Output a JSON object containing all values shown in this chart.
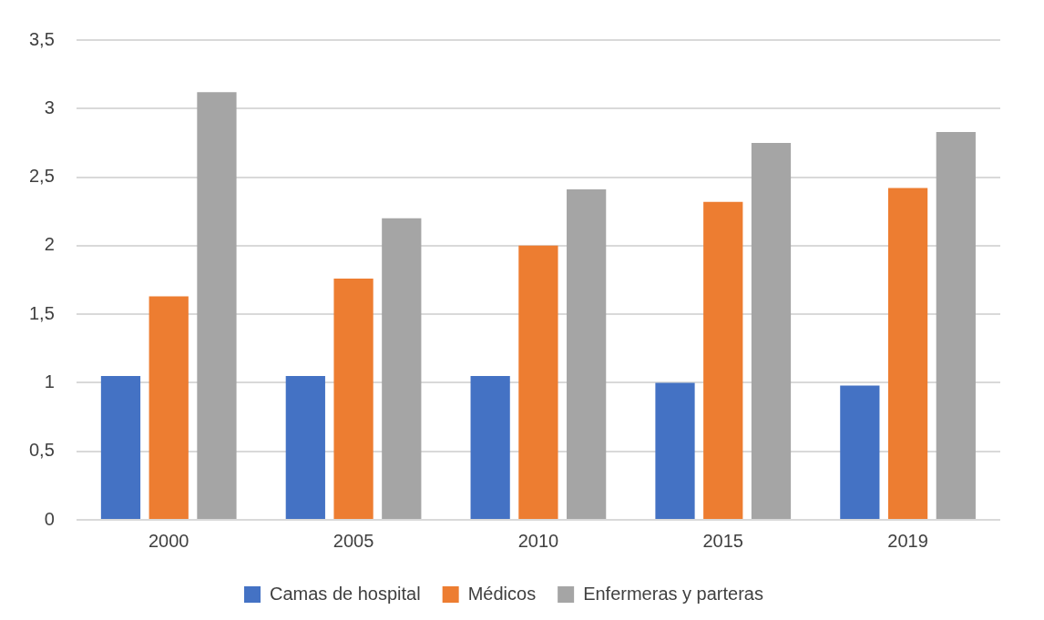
{
  "chart_data": {
    "type": "bar",
    "categories": [
      "2000",
      "2005",
      "2010",
      "2015",
      "2019"
    ],
    "series": [
      {
        "name": "Camas de hospital",
        "color": "#4472c4",
        "values": [
          1.05,
          1.05,
          1.05,
          1.0,
          0.98
        ]
      },
      {
        "name": "Médicos",
        "color": "#ed7d31",
        "values": [
          1.63,
          1.76,
          2.0,
          2.32,
          2.42
        ]
      },
      {
        "name": "Enfermeras y parteras",
        "color": "#a5a5a5",
        "values": [
          3.12,
          2.2,
          2.41,
          2.75,
          2.83
        ]
      }
    ],
    "ylim": [
      0,
      3.5
    ],
    "yticks": [
      0,
      {
        "value": 0.5,
        "label": "0,5"
      },
      1,
      {
        "value": 1.5,
        "label": "1,5"
      },
      2,
      {
        "value": 2.5,
        "label": "2,5"
      },
      3,
      {
        "value": 3.5,
        "label": "3,5"
      }
    ],
    "grid": "y",
    "legend": "bottom"
  }
}
